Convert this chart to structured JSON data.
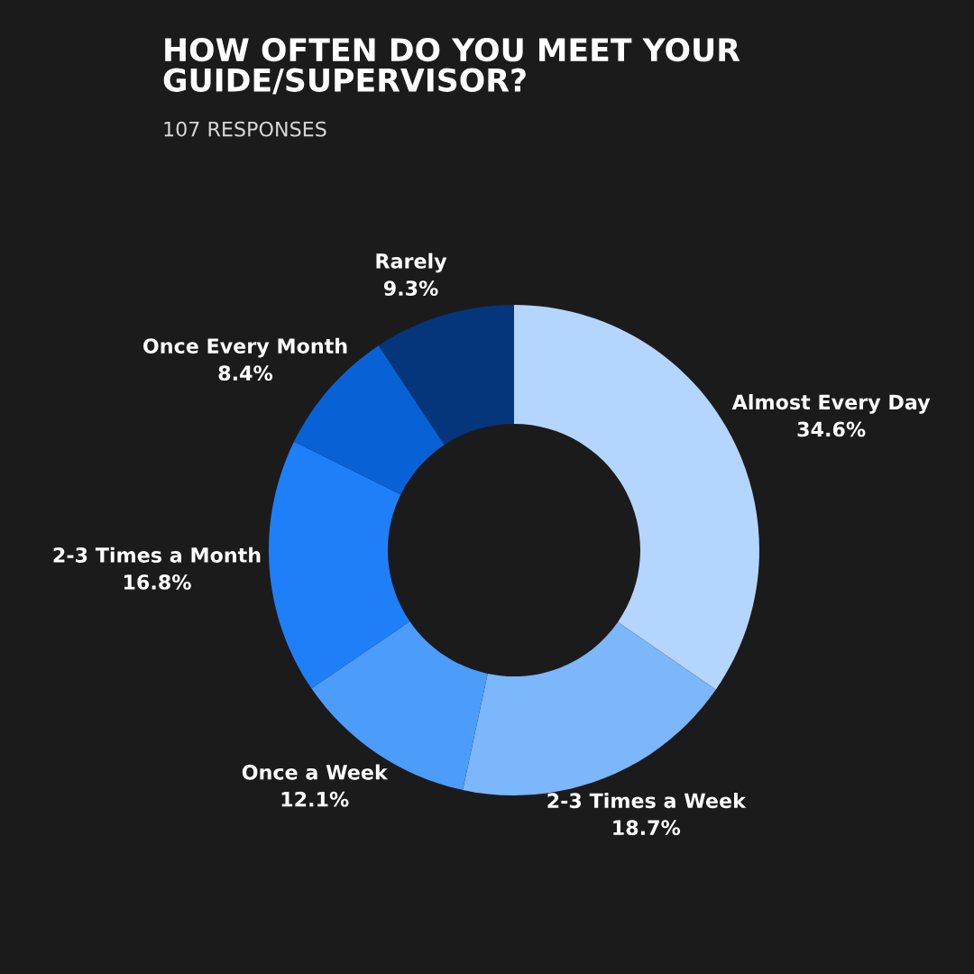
{
  "chart_data": {
    "type": "donut",
    "title": "HOW OFTEN DO YOU MEET YOUR\nGUIDE/SUPERVISOR?",
    "subtitle": "107 RESPONSES",
    "categories": [
      "Almost Every Day",
      "2-3 Times a Week",
      "Once a Week",
      "2-3 Times a Month",
      "Once Every Month",
      "Rarely"
    ],
    "values": [
      34.6,
      18.7,
      12.1,
      16.8,
      8.4,
      9.3
    ],
    "value_labels": [
      "34.6%",
      "18.7%",
      "12.1%",
      "16.8%",
      "8.4%",
      "9.3%"
    ],
    "colors": [
      "#b4d5fd",
      "#7cb6fb",
      "#4c9cf9",
      "#1f7ff8",
      "#0862d6",
      "#05367b"
    ],
    "legend": false
  }
}
